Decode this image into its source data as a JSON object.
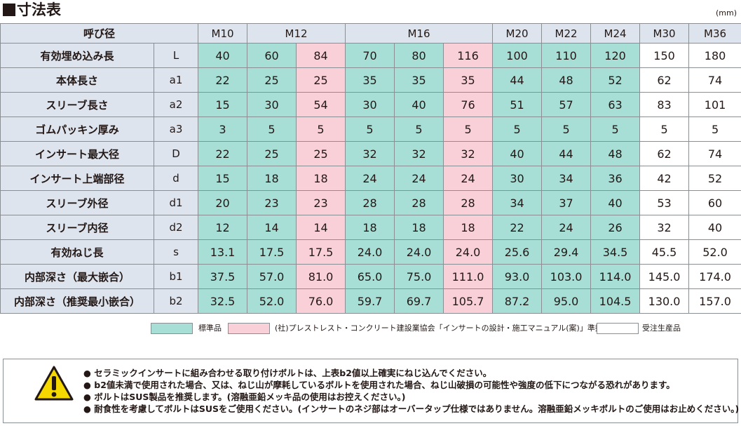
{
  "title": "寸法表",
  "unit": "(mm)",
  "header": {
    "label": "呼び径",
    "sizes": [
      "M10",
      "M12",
      "M16",
      "M20",
      "M22",
      "M24",
      "M30",
      "M36"
    ]
  },
  "rows": [
    {
      "label": "有効埋め込み長",
      "symbol": "L",
      "values": [
        "40",
        "60",
        "84",
        "70",
        "80",
        "116",
        "100",
        "110",
        "120",
        "150",
        "180"
      ]
    },
    {
      "label": "本体長さ",
      "symbol": "a1",
      "values": [
        "22",
        "25",
        "25",
        "35",
        "35",
        "35",
        "44",
        "48",
        "52",
        "62",
        "74"
      ]
    },
    {
      "label": "スリーブ長さ",
      "symbol": "a2",
      "values": [
        "15",
        "30",
        "54",
        "30",
        "40",
        "76",
        "51",
        "57",
        "63",
        "83",
        "101"
      ]
    },
    {
      "label": "ゴムパッキン厚み",
      "symbol": "a3",
      "values": [
        "3",
        "5",
        "5",
        "5",
        "5",
        "5",
        "5",
        "5",
        "5",
        "5",
        "5"
      ]
    },
    {
      "label": "インサート最大径",
      "symbol": "D",
      "values": [
        "22",
        "25",
        "25",
        "32",
        "32",
        "32",
        "40",
        "44",
        "48",
        "62",
        "74"
      ]
    },
    {
      "label": "インサート上端部径",
      "symbol": "d",
      "values": [
        "15",
        "18",
        "18",
        "24",
        "24",
        "24",
        "30",
        "34",
        "36",
        "42",
        "52"
      ]
    },
    {
      "label": "スリーブ外径",
      "symbol": "d1",
      "values": [
        "20",
        "23",
        "23",
        "28",
        "28",
        "28",
        "34",
        "37",
        "40",
        "53",
        "60"
      ]
    },
    {
      "label": "スリーブ内径",
      "symbol": "d2",
      "values": [
        "12",
        "14",
        "14",
        "18",
        "18",
        "18",
        "22",
        "24",
        "26",
        "32",
        "40"
      ]
    },
    {
      "label": "有効ねじ長",
      "symbol": "s",
      "values": [
        "13.1",
        "17.5",
        "17.5",
        "24.0",
        "24.0",
        "24.0",
        "25.6",
        "29.4",
        "34.5",
        "45.5",
        "52.0"
      ]
    },
    {
      "label": "内部深さ（最大嵌合）",
      "symbol": "b1",
      "values": [
        "37.5",
        "57.0",
        "81.0",
        "65.0",
        "75.0",
        "111.0",
        "93.0",
        "103.0",
        "114.0",
        "145.0",
        "174.0"
      ]
    },
    {
      "label": "内部深さ（推奨最小嵌合）",
      "symbol": "b2",
      "values": [
        "32.5",
        "52.0",
        "76.0",
        "59.7",
        "69.7",
        "105.7",
        "87.2",
        "95.0",
        "104.5",
        "130.0",
        "157.0"
      ]
    }
  ],
  "column_types": [
    "std",
    "std",
    "pc",
    "std",
    "std",
    "pc",
    "std",
    "std",
    "std",
    "ord",
    "ord"
  ],
  "legend": [
    {
      "label": "標準品",
      "color": "#a7ded6"
    },
    {
      "label": "(社)プレストレスト・コンクリート建設業協会「インサートの設計・施工マニュアル(案)」準拠品",
      "color": "#f9d0d8"
    },
    {
      "label": "受注生産品",
      "color": "#ffffff"
    }
  ],
  "notes": [
    "● セラミックインサートに組み合わせる取り付けボルトは、上表b2値以上確実にねじ込んでください。",
    "● b2値未満で使用された場合、又は、ねじ山が摩耗しているボルトを使用された場合、ねじ山破損の可能性や強度の低下につながる恐れがあります。",
    "● ボルトはSUS製品を推奨します。(溶融亜鉛メッキ品の使用はお控えください。)",
    "● 耐食性を考慮してボルトはSUSをご使用ください。(インサートのネジ部はオーバータップ仕様ではありません。溶融亜鉛メッキボルトのご使用はお止めください。)"
  ],
  "icons": {
    "warning": "warning-triangle-icon"
  }
}
